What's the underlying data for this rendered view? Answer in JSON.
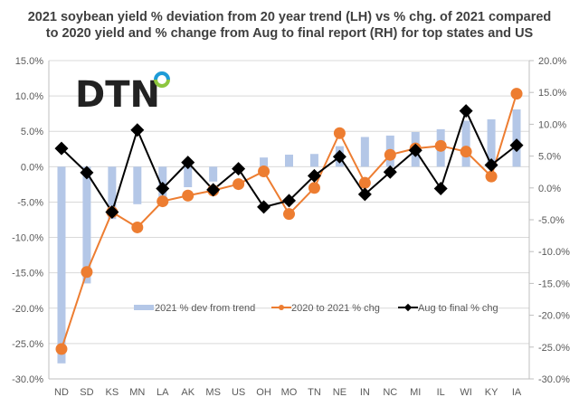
{
  "chart_data": {
    "type": "bar+line",
    "title": "2021 soybean yield %  deviation from 20 year trend (LH) vs % chg. of 2021 compared to 2020 yield and % change from Aug to final report (RH) for top states and US",
    "categories": [
      "ND",
      "SD",
      "KS",
      "MN",
      "LA",
      "AK",
      "MS",
      "US",
      "OH",
      "MO",
      "TN",
      "NE",
      "IN",
      "NC",
      "MI",
      "IL",
      "WI",
      "KY",
      "IA"
    ],
    "left_axis": {
      "min": -30,
      "max": 15,
      "step": 5,
      "ticks": [
        "15.0%",
        "10.0%",
        "5.0%",
        "0.0%",
        "-5.0%",
        "-10.0%",
        "-15.0%",
        "-20.0%",
        "-25.0%",
        "-30.0%"
      ]
    },
    "right_axis": {
      "min": -30,
      "max": 20,
      "step": 5,
      "ticks": [
        "20.0%",
        "15.0%",
        "10.0%",
        "5.0%",
        "0.0%",
        "-5.0%",
        "-10.0%",
        "-15.0%",
        "-20.0%",
        "-25.0%",
        "-30.0%"
      ]
    },
    "grid": true,
    "legend_position": "bottom-inside",
    "series": [
      {
        "name": "2021 % dev from trend",
        "type": "bar",
        "axis": "left",
        "color": "#b4c7e7",
        "values": [
          -27.8,
          -16.5,
          -7.4,
          -5.3,
          -4.6,
          -2.9,
          -2.1,
          -0.4,
          1.3,
          1.7,
          1.8,
          2.9,
          4.2,
          4.4,
          4.9,
          5.3,
          6.5,
          6.7,
          8.1
        ]
      },
      {
        "name": "2020 to 2021 % chg",
        "type": "line",
        "axis": "right",
        "color": "#ed7d31",
        "marker": "circle",
        "values": [
          -25.3,
          -13.2,
          -3.8,
          -6.2,
          -2.1,
          -1.2,
          -0.4,
          0.6,
          2.6,
          -4.1,
          0.0,
          8.6,
          0.8,
          5.2,
          6.2,
          6.6,
          5.7,
          1.8,
          14.8
        ]
      },
      {
        "name": "Aug to final % chg",
        "type": "line",
        "axis": "right",
        "color": "#000000",
        "marker": "diamond",
        "values": [
          6.2,
          2.4,
          -3.8,
          9.1,
          -0.1,
          4.0,
          -0.3,
          3.0,
          -3.0,
          -2.0,
          1.9,
          4.9,
          -1.0,
          2.5,
          5.9,
          -0.1,
          12.1,
          3.6,
          6.7
        ]
      }
    ]
  },
  "logo": {
    "text": "DTN"
  }
}
